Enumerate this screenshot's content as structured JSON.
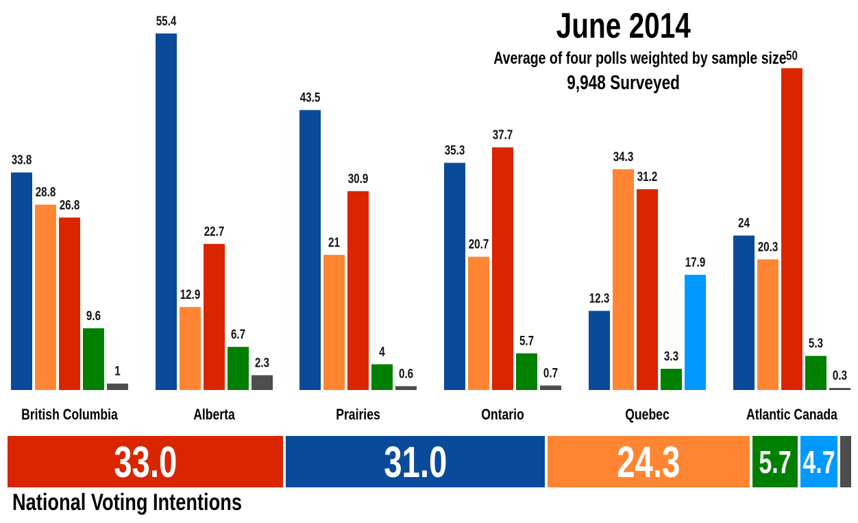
{
  "header": {
    "title": "June 2014",
    "subtitle": "Average of four polls weighted by sample size",
    "surveyed": "9,948 Surveyed"
  },
  "party_colors": {
    "blue": "#0A4A9A",
    "orange": "#FF8533",
    "red": "#D92600",
    "green": "#007F00",
    "lightblue": "#0099FF",
    "gray": "#4D4D4D"
  },
  "chart_data": {
    "type": "bar",
    "title": "June 2014",
    "subtitle": "Average of four polls weighted by sample size",
    "xlabel": "",
    "ylabel": "",
    "ylim": [
      0,
      56
    ],
    "grid": false,
    "legend": "none",
    "categories": [
      "British Columbia",
      "Alberta",
      "Prairies",
      "Ontario",
      "Quebec",
      "Atlantic Canada"
    ],
    "groups": [
      {
        "region": "British Columbia",
        "bars": [
          {
            "color": "blue",
            "value": 33.8,
            "label": "33.8"
          },
          {
            "color": "orange",
            "value": 28.8,
            "label": "28.8"
          },
          {
            "color": "red",
            "value": 26.8,
            "label": "26.8"
          },
          {
            "color": "green",
            "value": 9.6,
            "label": "9.6"
          },
          {
            "color": "gray",
            "value": 1,
            "label": "1"
          }
        ]
      },
      {
        "region": "Alberta",
        "bars": [
          {
            "color": "blue",
            "value": 55.4,
            "label": "55.4"
          },
          {
            "color": "orange",
            "value": 12.9,
            "label": "12.9"
          },
          {
            "color": "red",
            "value": 22.7,
            "label": "22.7"
          },
          {
            "color": "green",
            "value": 6.7,
            "label": "6.7"
          },
          {
            "color": "gray",
            "value": 2.3,
            "label": "2.3"
          }
        ]
      },
      {
        "region": "Prairies",
        "bars": [
          {
            "color": "blue",
            "value": 43.5,
            "label": "43.5"
          },
          {
            "color": "orange",
            "value": 21,
            "label": "21"
          },
          {
            "color": "red",
            "value": 30.9,
            "label": "30.9"
          },
          {
            "color": "green",
            "value": 4,
            "label": "4"
          },
          {
            "color": "gray",
            "value": 0.6,
            "label": "0.6"
          }
        ]
      },
      {
        "region": "Ontario",
        "bars": [
          {
            "color": "blue",
            "value": 35.3,
            "label": "35.3"
          },
          {
            "color": "orange",
            "value": 20.7,
            "label": "20.7"
          },
          {
            "color": "red",
            "value": 37.7,
            "label": "37.7"
          },
          {
            "color": "green",
            "value": 5.7,
            "label": "5.7"
          },
          {
            "color": "gray",
            "value": 0.7,
            "label": "0.7"
          }
        ]
      },
      {
        "region": "Quebec",
        "bars": [
          {
            "color": "blue",
            "value": 12.3,
            "label": "12.3"
          },
          {
            "color": "orange",
            "value": 34.3,
            "label": "34.3"
          },
          {
            "color": "red",
            "value": 31.2,
            "label": "31.2"
          },
          {
            "color": "green",
            "value": 3.3,
            "label": "3.3"
          },
          {
            "color": "lightblue",
            "value": 17.9,
            "label": "17.9"
          }
        ]
      },
      {
        "region": "Atlantic Canada",
        "bars": [
          {
            "color": "blue",
            "value": 24,
            "label": "24"
          },
          {
            "color": "orange",
            "value": 20.3,
            "label": "20.3"
          },
          {
            "color": "red",
            "value": 50,
            "label": "50"
          },
          {
            "color": "green",
            "value": 5.3,
            "label": "5.3"
          },
          {
            "color": "gray",
            "value": 0.3,
            "label": "0.3"
          }
        ]
      }
    ],
    "national": {
      "label": "National Voting Intentions",
      "segments": [
        {
          "color": "red",
          "value": 33.0,
          "label": "33.0"
        },
        {
          "color": "blue",
          "value": 31.0,
          "label": "31.0"
        },
        {
          "color": "orange",
          "value": 24.3,
          "label": "24.3"
        },
        {
          "color": "green",
          "value": 5.7,
          "label": "5.7"
        },
        {
          "color": "lightblue",
          "value": 4.7,
          "label": "4.7"
        },
        {
          "color": "gray",
          "value": 1.3,
          "label": ""
        }
      ]
    }
  }
}
